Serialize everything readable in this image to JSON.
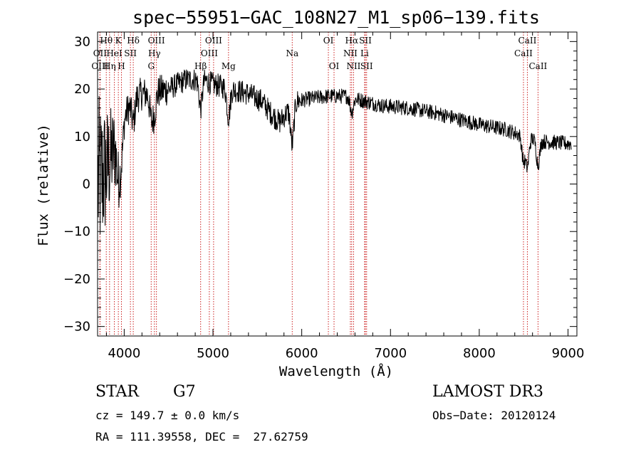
{
  "chart_data": {
    "type": "line",
    "title": "spec−55951−GAC_108N27_M1_sp06−139.fits",
    "xlabel": "Wavelength (Å)",
    "ylabel": "Flux (relative)",
    "xlim": [
      3700,
      9100
    ],
    "ylim": [
      -32,
      32
    ],
    "x_ticks": [
      4000,
      5000,
      6000,
      7000,
      8000,
      9000
    ],
    "y_ticks": [
      -30,
      -20,
      -10,
      0,
      10,
      20,
      30
    ],
    "y_tick_labels": [
      "−30",
      "−20",
      "−10",
      "0",
      "10",
      "20",
      "30"
    ],
    "line_color": "#000000",
    "marker_color": "#cc2222",
    "spectrum_continuum": [
      [
        3700,
        0
      ],
      [
        3800,
        3
      ],
      [
        3900,
        8
      ],
      [
        4000,
        14
      ],
      [
        4100,
        18
      ],
      [
        4200,
        19
      ],
      [
        4300,
        19
      ],
      [
        4500,
        20
      ],
      [
        4700,
        22
      ],
      [
        4900,
        22
      ],
      [
        5000,
        21
      ],
      [
        5200,
        20
      ],
      [
        5400,
        19
      ],
      [
        5550,
        17.5
      ],
      [
        5650,
        15
      ],
      [
        5750,
        13
      ],
      [
        5850,
        15.5
      ],
      [
        5950,
        17.5
      ],
      [
        6100,
        18
      ],
      [
        6300,
        18.5
      ],
      [
        6500,
        18.5
      ],
      [
        6700,
        17.5
      ],
      [
        6900,
        16.5
      ],
      [
        7200,
        16
      ],
      [
        7500,
        15
      ],
      [
        7800,
        13.5
      ],
      [
        8000,
        12.5
      ],
      [
        8300,
        11.5
      ],
      [
        8500,
        10
      ],
      [
        8700,
        9
      ],
      [
        9000,
        8.5
      ]
    ],
    "spectrum_features": [
      {
        "x": 3933,
        "depth": 8
      },
      {
        "x": 3968,
        "depth": 7
      },
      {
        "x": 4102,
        "depth": 5
      },
      {
        "x": 4304,
        "depth": 5
      },
      {
        "x": 4340,
        "depth": 4
      },
      {
        "x": 4861,
        "depth": 6
      },
      {
        "x": 5175,
        "depth": 6
      },
      {
        "x": 5893,
        "depth": 8
      },
      {
        "x": 6563,
        "depth": 3
      },
      {
        "x": 8498,
        "depth": 5
      },
      {
        "x": 8542,
        "depth": 6
      },
      {
        "x": 8662,
        "depth": 5
      }
    ],
    "spectral_lines": [
      {
        "label": "Hθ",
        "x": 3798,
        "row": 1
      },
      {
        "label": "OII",
        "x": 3727,
        "row": 2
      },
      {
        "label": "OIII",
        "x": 3727,
        "row": 3
      },
      {
        "label": "HeI",
        "x": 3889,
        "row": 2
      },
      {
        "label": "Hη",
        "x": 3835,
        "row": 3
      },
      {
        "label": "K",
        "x": 3934,
        "row": 1
      },
      {
        "label": "H",
        "x": 3969,
        "row": 3
      },
      {
        "label": "SII",
        "x": 4070,
        "row": 2
      },
      {
        "label": "Hδ",
        "x": 4102,
        "row": 1
      },
      {
        "label": "Hγ",
        "x": 4340,
        "row": 2
      },
      {
        "label": "G",
        "x": 4304,
        "row": 3
      },
      {
        "label": "OIII",
        "x": 4363,
        "row": 1
      },
      {
        "label": "Hβ",
        "x": 4861,
        "row": 3
      },
      {
        "label": "OIII",
        "x": 5007,
        "row": 1
      },
      {
        "label": "OIII",
        "x": 4959,
        "row": 2
      },
      {
        "label": "Mg",
        "x": 5175,
        "row": 3
      },
      {
        "label": "Na",
        "x": 5893,
        "row": 2
      },
      {
        "label": "OI",
        "x": 6300,
        "row": 1
      },
      {
        "label": "OI",
        "x": 6364,
        "row": 3
      },
      {
        "label": "Hα",
        "x": 6563,
        "row": 1
      },
      {
        "label": "NII",
        "x": 6548,
        "row": 2
      },
      {
        "label": "NII",
        "x": 6584,
        "row": 3
      },
      {
        "label": "SII",
        "x": 6717,
        "row": 1
      },
      {
        "label": "Li",
        "x": 6708,
        "row": 2
      },
      {
        "label": "SII",
        "x": 6731,
        "row": 3
      },
      {
        "label": "CaII",
        "x": 8542,
        "row": 1
      },
      {
        "label": "CaII",
        "x": 8498,
        "row": 2
      },
      {
        "label": "CaII",
        "x": 8662,
        "row": 3
      }
    ]
  },
  "info": {
    "object_class": "STAR",
    "subclass": "G7",
    "survey": "LAMOST DR3",
    "redshift": "cz = 149.7 ± 0.0 km/s",
    "obs_date": "Obs−Date: 20120124",
    "coords": "RA = 111.39558, DEC =  27.62759"
  }
}
